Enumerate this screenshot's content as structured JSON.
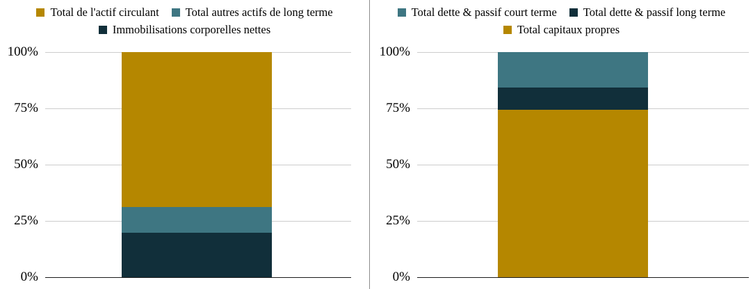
{
  "colors": {
    "gold": "#B58700",
    "teal": "#3E7682",
    "navy": "#112F3A",
    "gridline": "#CCCCCC",
    "baseline": "#1A1A1A",
    "divider": "#8C8C8C",
    "text": "#000000"
  },
  "chart_data": [
    {
      "type": "bar",
      "stacked": true,
      "orientation": "vertical",
      "title": "",
      "xlabel": "",
      "ylabel": "",
      "ylim": [
        0,
        100
      ],
      "grid": true,
      "legend_position": "top",
      "yticks": [
        {
          "label": "0%",
          "value": 0
        },
        {
          "label": "25%",
          "value": 25
        },
        {
          "label": "50%",
          "value": 50
        },
        {
          "label": "75%",
          "value": 75
        },
        {
          "label": "100%",
          "value": 100
        }
      ],
      "legend": [
        {
          "label": "Total de l'actif circulant",
          "color": "gold"
        },
        {
          "label": "Total autres actifs de long terme",
          "color": "teal"
        },
        {
          "label": "Immobilisations corporelles nettes",
          "color": "navy"
        }
      ],
      "segments_bottom_to_top": [
        {
          "label": "Immobilisations corporelles nettes",
          "color": "navy",
          "value_pct": 19.7
        },
        {
          "label": "Total autres actifs de long terme",
          "color": "teal",
          "value_pct": 11.5
        },
        {
          "label": "Total de l'actif circulant",
          "color": "gold",
          "value_pct": 68.8
        }
      ]
    },
    {
      "type": "bar",
      "stacked": true,
      "orientation": "vertical",
      "title": "",
      "xlabel": "",
      "ylabel": "",
      "ylim": [
        0,
        100
      ],
      "grid": true,
      "legend_position": "top",
      "yticks": [
        {
          "label": "0%",
          "value": 0
        },
        {
          "label": "25%",
          "value": 25
        },
        {
          "label": "50%",
          "value": 50
        },
        {
          "label": "75%",
          "value": 75
        },
        {
          "label": "100%",
          "value": 100
        }
      ],
      "legend": [
        {
          "label": "Total dette & passif court terme",
          "color": "teal"
        },
        {
          "label": "Total dette & passif long terme",
          "color": "navy"
        },
        {
          "label": "Total capitaux propres",
          "color": "gold"
        }
      ],
      "segments_bottom_to_top": [
        {
          "label": "Total capitaux propres",
          "color": "gold",
          "value_pct": 74.4
        },
        {
          "label": "Total dette & passif long terme",
          "color": "navy",
          "value_pct": 10.0
        },
        {
          "label": "Total dette & passif court terme",
          "color": "teal",
          "value_pct": 15.6
        }
      ]
    }
  ]
}
